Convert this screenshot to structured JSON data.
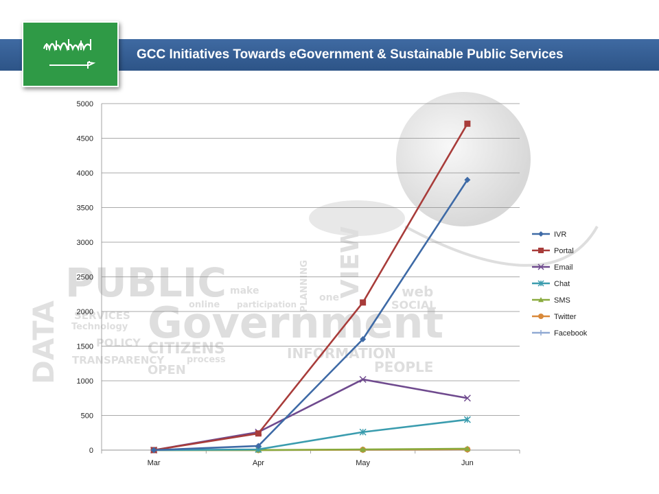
{
  "header": {
    "title": "GCC Initiatives Towards eGovernment & Sustainable Public Services"
  },
  "background_words": [
    "PUBLIC",
    "Government",
    "DATA",
    "CITIZENS",
    "INFORMATION",
    "TRANSPARENCY",
    "OPEN",
    "PEOPLE",
    "POLICY",
    "SERVICES",
    "participation",
    "online",
    "make",
    "one",
    "web",
    "SOCIAL",
    "process",
    "Technology",
    "VIEW",
    "PLANNING"
  ],
  "colors": {
    "banner": "#2d5487",
    "flag_green": "#2f9a46",
    "IVR": "#3e6aa6",
    "Portal": "#a83c3a",
    "Email": "#6f4a8e",
    "Chat": "#3a9cae",
    "SMS": "#8aab3f",
    "Twitter": "#d9893a",
    "Facebook": "#8fa9d3"
  },
  "chart_data": {
    "type": "line",
    "categories": [
      "Mar",
      "Apr",
      "May",
      "Jun"
    ],
    "ylim": [
      0,
      5000
    ],
    "yticks": [
      0,
      500,
      1000,
      1500,
      2000,
      2500,
      3000,
      3500,
      4000,
      4500,
      5000
    ],
    "grid": true,
    "legend": "right",
    "title": "",
    "xlabel": "",
    "ylabel": "",
    "series": [
      {
        "name": "IVR",
        "marker": "diamond",
        "values": [
          0,
          60,
          1600,
          3900
        ]
      },
      {
        "name": "Portal",
        "marker": "square",
        "values": [
          0,
          240,
          2130,
          4710
        ]
      },
      {
        "name": "Email",
        "marker": "x",
        "values": [
          0,
          260,
          1020,
          750
        ]
      },
      {
        "name": "Chat",
        "marker": "star",
        "values": [
          0,
          10,
          260,
          440
        ]
      },
      {
        "name": "SMS",
        "marker": "triangle",
        "values": [
          0,
          0,
          10,
          20
        ]
      },
      {
        "name": "Twitter",
        "marker": "circle",
        "values": [
          0,
          0,
          5,
          10
        ]
      },
      {
        "name": "Facebook",
        "marker": "plus",
        "values": [
          0,
          0,
          3,
          5
        ]
      }
    ]
  }
}
